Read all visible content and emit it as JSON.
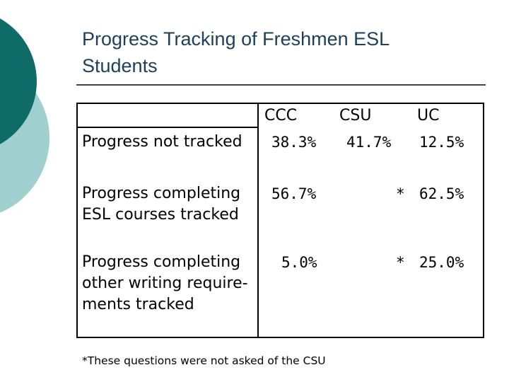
{
  "slide": {
    "title": "Progress Tracking of Freshmen ESL Students",
    "accent_colors": [
      "#0e6b68",
      "#9fcfcf"
    ]
  },
  "table": {
    "headers": [
      "CCC",
      "CSU",
      "UC"
    ],
    "rows": [
      {
        "label": "Progress not tracked",
        "ccc": "38.3%",
        "csu": "41.7%",
        "uc": "12.5%"
      },
      {
        "label": "Progress completing ESL courses tracked",
        "ccc": "56.7%",
        "csu": "*",
        "uc": "62.5%"
      },
      {
        "label": "Progress completing other writing require-ments tracked",
        "ccc": "5.0%",
        "csu": "*",
        "uc": "25.0%"
      }
    ]
  },
  "footnote": "*These questions were not asked of the CSU"
}
